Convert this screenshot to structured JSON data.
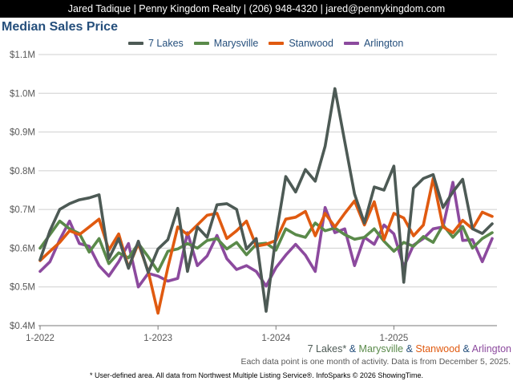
{
  "header": {
    "banner": "Jared Tadique | Penny Kingdom Realty | (206) 948-4320 | jared@pennykingdom.com"
  },
  "chart_data": {
    "type": "line",
    "title": "Median Sales Price",
    "xlabel": "",
    "ylabel": "",
    "ylim": [
      400000,
      1100000
    ],
    "yticks": [
      400000,
      500000,
      600000,
      700000,
      800000,
      900000,
      1000000,
      1100000
    ],
    "ytick_labels": [
      "$0.4M",
      "$0.5M",
      "$0.6M",
      "$0.7M",
      "$0.8M",
      "$0.9M",
      "$1.0M",
      "$1.1M"
    ],
    "xtick_labels": [
      "1-2022",
      "1-2023",
      "1-2024",
      "1-2025"
    ],
    "xtick_months": [
      0,
      12,
      24,
      36
    ],
    "x_months_total": 47,
    "grid": true,
    "legend_position": "top",
    "series": [
      {
        "name": "7 Lakes",
        "color": "#4d5a55",
        "values": [
          570000,
          645000,
          700000,
          715000,
          725000,
          730000,
          738000,
          573000,
          625000,
          548000,
          618000,
          537000,
          598000,
          622000,
          703000,
          540000,
          655000,
          628000,
          712000,
          715000,
          700000,
          598000,
          625000,
          437000,
          632000,
          785000,
          745000,
          803000,
          773000,
          863000,
          1012000,
          875000,
          740000,
          665000,
          758000,
          750000,
          812000,
          512000,
          755000,
          780000,
          790000,
          705000,
          745000,
          778000,
          650000,
          638000,
          663000
        ]
      },
      {
        "name": "Marysville",
        "color": "#5a8a4a",
        "values": [
          600000,
          635000,
          670000,
          650000,
          638000,
          590000,
          625000,
          560000,
          588000,
          575000,
          612000,
          578000,
          540000,
          592000,
          598000,
          612000,
          600000,
          620000,
          625000,
          598000,
          615000,
          583000,
          610000,
          613000,
          595000,
          650000,
          635000,
          628000,
          665000,
          645000,
          652000,
          635000,
          623000,
          628000,
          650000,
          618000,
          592000,
          615000,
          605000,
          630000,
          615000,
          660000,
          628000,
          656000,
          600000,
          625000,
          640000
        ]
      },
      {
        "name": "Stanwood",
        "color": "#e05a10",
        "values": [
          568000,
          592000,
          615000,
          645000,
          635000,
          655000,
          675000,
          595000,
          637000,
          550000,
          612000,
          540000,
          432000,
          550000,
          655000,
          635000,
          660000,
          685000,
          690000,
          625000,
          645000,
          670000,
          605000,
          610000,
          620000,
          675000,
          680000,
          695000,
          632000,
          690000,
          655000,
          690000,
          722000,
          660000,
          720000,
          622000,
          690000,
          678000,
          632000,
          660000,
          780000,
          655000,
          640000,
          672000,
          650000,
          693000,
          682000
        ]
      },
      {
        "name": "Arlington",
        "color": "#8c4a9e",
        "values": [
          540000,
          565000,
          622000,
          670000,
          612000,
          605000,
          555000,
          528000,
          565000,
          612000,
          500000,
          535000,
          528000,
          515000,
          522000,
          640000,
          555000,
          580000,
          633000,
          573000,
          545000,
          555000,
          540000,
          502000,
          550000,
          582000,
          610000,
          582000,
          540000,
          705000,
          640000,
          650000,
          555000,
          628000,
          610000,
          660000,
          637000,
          552000,
          608000,
          625000,
          650000,
          655000,
          770000,
          620000,
          622000,
          565000,
          625000
        ]
      }
    ]
  },
  "caption": {
    "series_names": [
      "7 Lakes*",
      "Marysville",
      "Stanwood",
      "Arlington"
    ],
    "separator": "&",
    "activity_note": "Each data point is one month of activity. Data is from December 5, 2025."
  },
  "footer": {
    "footnote": "* User-defined area. All data from Northwest Multiple Listing Service®. InfoSparks © 2026 ShowingTime."
  }
}
